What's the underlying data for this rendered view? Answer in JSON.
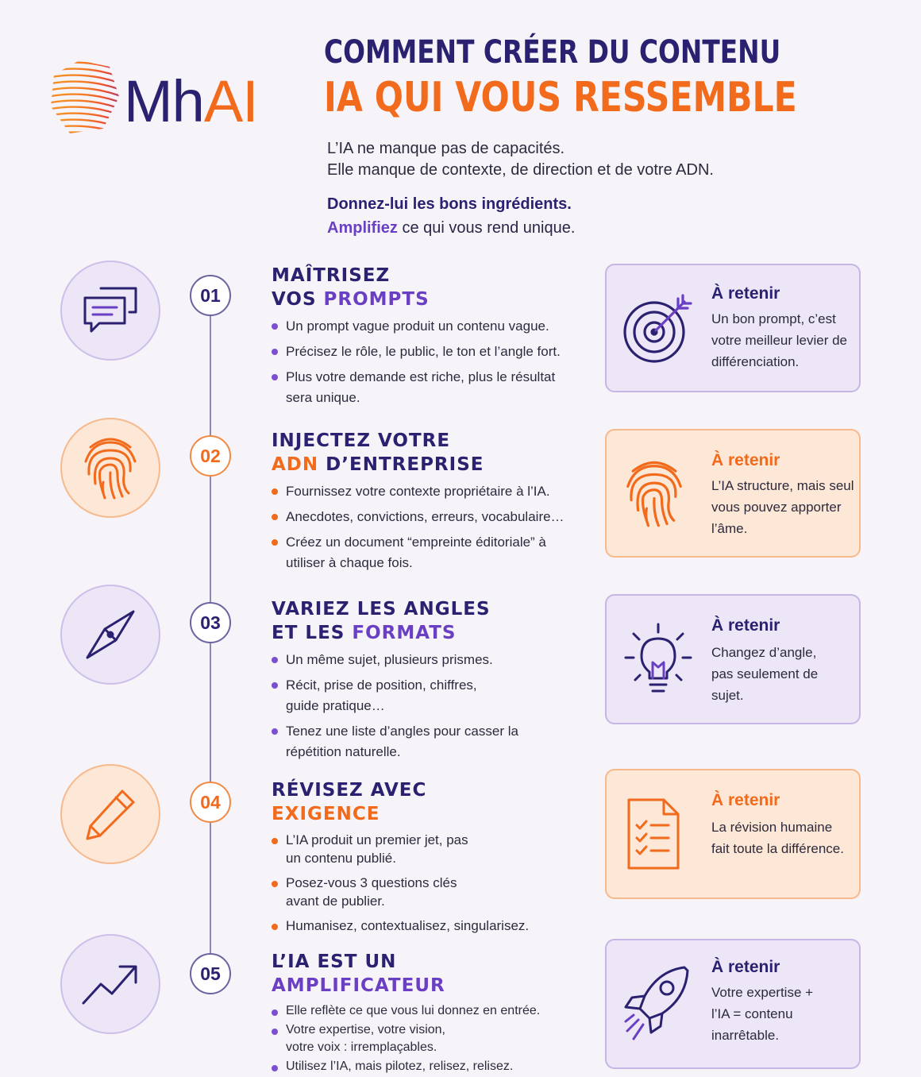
{
  "logo": {
    "text_mh": "Mh",
    "text_ai": "AI"
  },
  "title": {
    "line1": "COMMENT CRÉER DU CONTENU",
    "line2": "IA QUI VOUS RESSEMBLE"
  },
  "intro": {
    "line1": "L’IA ne manque pas de capacités.",
    "line2": "Elle manque de contexte, de direction et de votre ADN.",
    "strong_line": "Donnez-lui les bons ingrédients.",
    "accent_word": "Amplifiez",
    "accent_rest": " ce qui vous rend unique."
  },
  "colors": {
    "navy": "#2a2170",
    "orange": "#f26a1b",
    "purple": "#6a3fc4"
  },
  "steps": [
    {
      "number": "01",
      "icon": "chat-bubbles-icon",
      "title_line1": "MAÎTRISEZ",
      "title_line2_plain": "VOS ",
      "title_line2_highlight": "PROMPTS",
      "bullets": [
        "Un prompt vague produit un contenu vague.",
        "Précisez le rôle, le public, le ton et l’angle fort.",
        "Plus votre demande est riche, plus le résultat sera unique."
      ],
      "takeaway": {
        "icon": "target-icon",
        "heading": "À retenir",
        "text": "Un bon prompt, c’est votre meilleur levier de différenciation."
      }
    },
    {
      "number": "02",
      "icon": "fingerprint-icon",
      "title_line1": "INJECTEZ VOTRE",
      "title_line2_highlight": "ADN",
      "title_line2_plain": " D’ENTREPRISE",
      "bullets": [
        "Fournissez votre contexte propriétaire à l’IA.",
        "Anecdotes, convictions, erreurs, vocabulaire…",
        "Créez un document “empreinte éditoriale” à utiliser à chaque fois."
      ],
      "takeaway": {
        "icon": "fingerprint-icon",
        "heading": "À retenir",
        "text": "L’IA structure, mais seul vous pouvez apporter l’âme."
      }
    },
    {
      "number": "03",
      "icon": "compass-icon",
      "title_line1": "VARIEZ LES ANGLES",
      "title_line2_plain": "ET LES ",
      "title_line2_highlight": "FORMATS",
      "bullets": [
        "Un même sujet, plusieurs prismes.",
        "Récit, prise de position, chiffres, guide pratique…",
        "Tenez une liste d’angles pour casser la répétition naturelle."
      ],
      "takeaway": {
        "icon": "lightbulb-icon",
        "heading": "À retenir",
        "text": "Changez d’angle, pas seulement de sujet."
      }
    },
    {
      "number": "04",
      "icon": "pencil-icon",
      "title_line1": "RÉVISEZ AVEC",
      "title_line2_plain": "",
      "title_line2_highlight": "EXIGENCE",
      "bullets": [
        "L’IA produit un premier jet, pas un contenu publié.",
        "Posez-vous 3 questions clés avant de publier.",
        "Humanisez, contextualisez, singularisez."
      ],
      "takeaway": {
        "icon": "checklist-icon",
        "heading": "À retenir",
        "text": "La révision humaine fait toute la différence."
      }
    },
    {
      "number": "05",
      "icon": "trend-up-icon",
      "title_line1": "L’IA EST UN",
      "title_line2_plain": "",
      "title_line2_highlight": "AMPLIFICATEUR",
      "bullets": [
        "Elle reflète ce que vous lui donnez en entrée.",
        "Votre expertise, votre vision, votre voix : irremplaçables.",
        "Utilisez l’IA, mais pilotez, relisez, relisez."
      ],
      "takeaway": {
        "icon": "rocket-icon",
        "heading": "À retenir",
        "text": "Votre expertise + l’IA = contenu inarrêtable."
      }
    }
  ]
}
